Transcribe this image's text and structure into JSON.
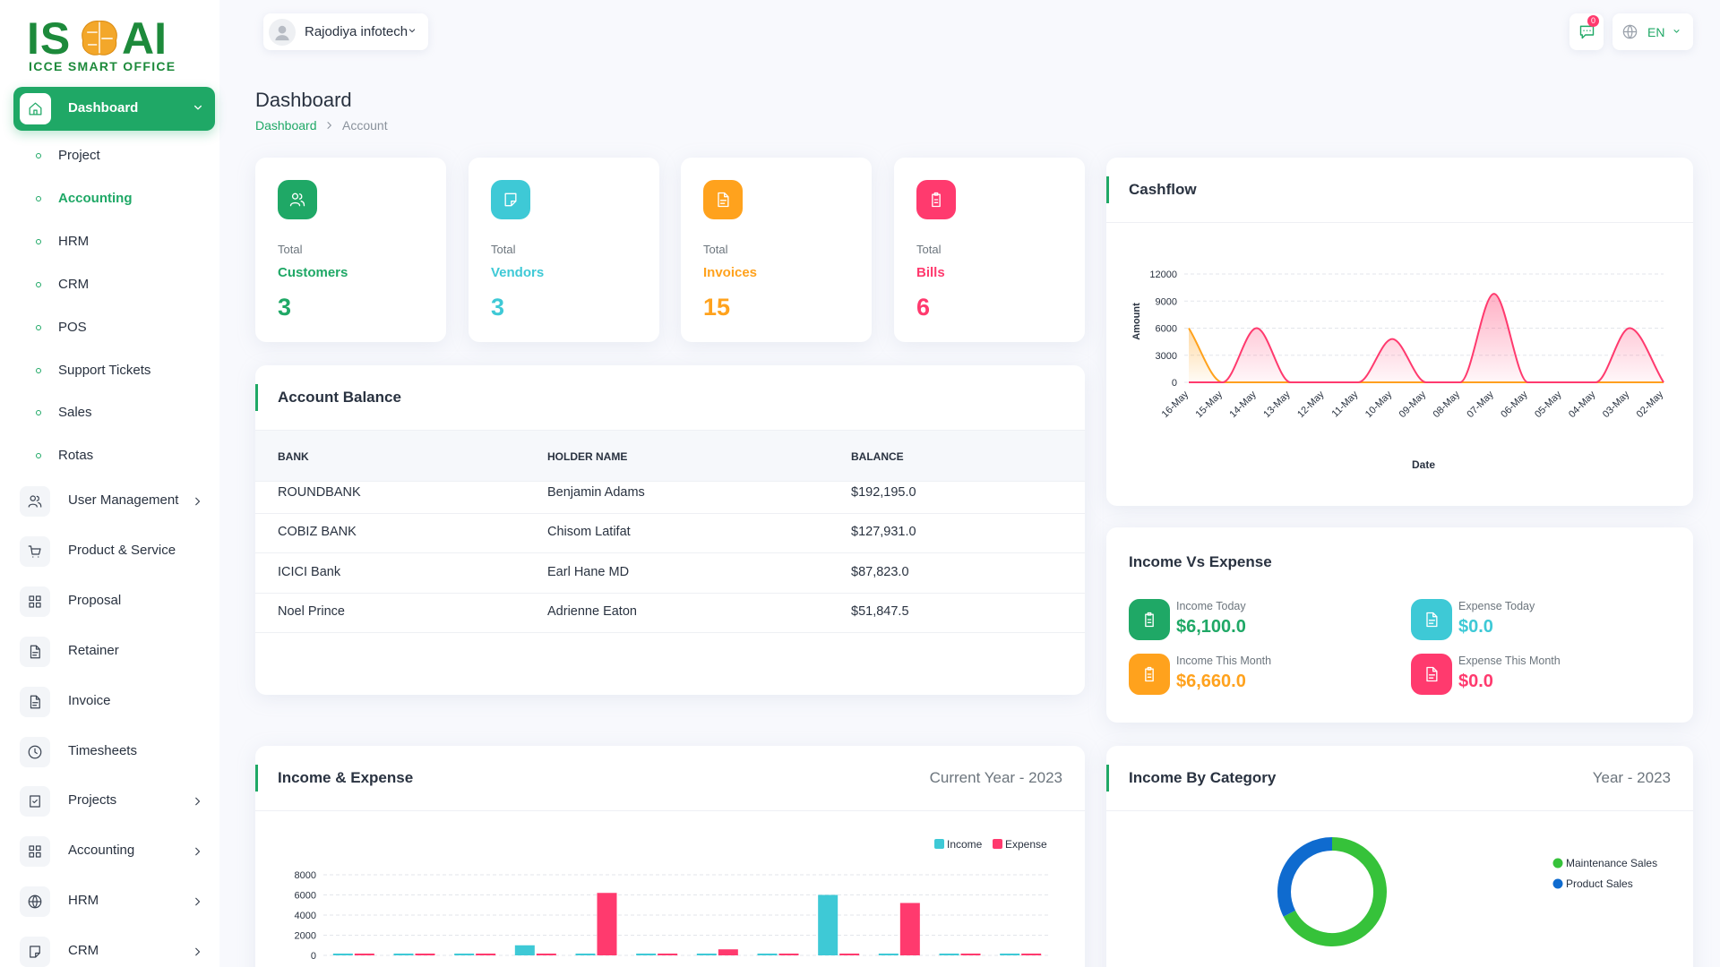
{
  "sidebar": {
    "logo_left": "IS",
    "logo_right": "AI",
    "logo_subtitle": "ICCE SMART OFFICE",
    "active": "Dashboard",
    "sub_items": [
      "Project",
      "Accounting",
      "HRM",
      "CRM",
      "POS",
      "Support Tickets",
      "Sales",
      "Rotas"
    ],
    "active_sub_index": 1,
    "items": [
      {
        "label": "User Management",
        "expandable": true
      },
      {
        "label": "Product & Service",
        "expandable": false
      },
      {
        "label": "Proposal",
        "expandable": false
      },
      {
        "label": "Retainer",
        "expandable": false
      },
      {
        "label": "Invoice",
        "expandable": false
      },
      {
        "label": "Timesheets",
        "expandable": false
      },
      {
        "label": "Projects",
        "expandable": true
      },
      {
        "label": "Accounting",
        "expandable": true
      },
      {
        "label": "HRM",
        "expandable": true
      },
      {
        "label": "CRM",
        "expandable": true
      }
    ]
  },
  "header": {
    "company": "Rajodiya infotech",
    "notification_count": 0,
    "language": "EN"
  },
  "page": {
    "title": "Dashboard",
    "breadcrumb": [
      "Dashboard",
      "Account"
    ]
  },
  "stats": [
    {
      "caption": "Total",
      "label": "Customers",
      "value": 3,
      "color": "#1fa866"
    },
    {
      "caption": "Total",
      "label": "Vendors",
      "value": 3,
      "color": "#3ec9d6"
    },
    {
      "caption": "Total",
      "label": "Invoices",
      "value": 15,
      "color": "#ffa21d"
    },
    {
      "caption": "Total",
      "label": "Bills",
      "value": 6,
      "color": "#ff3a6e"
    }
  ],
  "account_balance": {
    "title": "Account Balance",
    "columns": [
      "BANK",
      "HOLDER NAME",
      "BALANCE"
    ],
    "rows": [
      [
        "ROUNDBANK",
        "Benjamin Adams",
        "$192,195.0"
      ],
      [
        "COBIZ BANK",
        "Chisom Latifat",
        "$127,931.0"
      ],
      [
        "ICICI Bank",
        "Earl Hane MD",
        "$87,823.0"
      ],
      [
        "Noel Prince",
        "Adrienne Eaton",
        "$51,847.5"
      ]
    ]
  },
  "income_vs_expense": {
    "title": "Income Vs Expense",
    "items": [
      {
        "label": "Income Today",
        "value": "$6,100.0",
        "color": "#1fa866"
      },
      {
        "label": "Expense Today",
        "value": "$0.0",
        "color": "#3ec9d6"
      },
      {
        "label": "Income This Month",
        "value": "$6,660.0",
        "color": "#ffa21d"
      },
      {
        "label": "Expense This Month",
        "value": "$0.0",
        "color": "#ff3a6e"
      }
    ]
  },
  "chart_data": [
    {
      "type": "area",
      "title": "Cashflow",
      "categories": [
        "16-May",
        "15-May",
        "14-May",
        "13-May",
        "12-May",
        "11-May",
        "10-May",
        "09-May",
        "08-May",
        "07-May",
        "06-May",
        "05-May",
        "04-May",
        "03-May",
        "02-May"
      ],
      "series": [
        {
          "color": "#ffa21d",
          "values": [
            6000,
            0,
            0,
            0,
            0,
            0,
            0,
            0,
            0,
            0,
            0,
            0,
            0,
            0,
            0
          ]
        },
        {
          "color": "#ff3a6e",
          "values": [
            0,
            0,
            6000,
            0,
            0,
            0,
            4800,
            0,
            0,
            9800,
            0,
            0,
            0,
            6000,
            0
          ]
        }
      ],
      "ylim": [
        0,
        12000
      ],
      "yticks": [
        0,
        3000,
        6000,
        9000,
        12000
      ],
      "ylabel": "Amount",
      "xlabel": "Date",
      "grid": true
    },
    {
      "type": "bar",
      "title": "Income & Expense",
      "subtitle": "Current Year - 2023",
      "categories": [
        null,
        null,
        null,
        null,
        null,
        null,
        null,
        null,
        null,
        null,
        null,
        null
      ],
      "series": [
        {
          "name": "Income",
          "color": "#3ec9d6",
          "values": [
            150,
            0,
            0,
            1000,
            0,
            0,
            0,
            0,
            6000,
            0,
            0,
            0
          ]
        },
        {
          "name": "Expense",
          "color": "#ff3a6e",
          "values": [
            0,
            0,
            0,
            0,
            6200,
            0,
            600,
            0,
            0,
            5200,
            0,
            0
          ]
        }
      ],
      "ylim": [
        0,
        8000
      ],
      "yticks": [
        0,
        2000,
        4000,
        6000,
        8000
      ],
      "grid": true,
      "legend": "top-right"
    },
    {
      "type": "donut",
      "title": "Income By Category",
      "subtitle": "Year - 2023",
      "categories": [
        "Maintenance Sales",
        "Product Sales"
      ],
      "values": [
        67.5,
        32.5
      ],
      "colors": [
        "#36c23a",
        "#0f6bcf"
      ],
      "legend": "right"
    }
  ]
}
